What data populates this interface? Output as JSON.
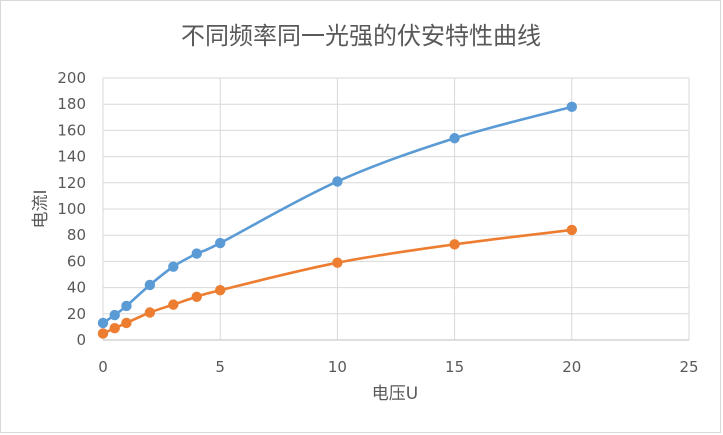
{
  "chart_data": {
    "type": "scatter",
    "title": "不同频率同一光强的伏安特性曲线",
    "xlabel": "电压U",
    "ylabel": "电流I",
    "xlim": [
      0,
      25
    ],
    "ylim": [
      0,
      200
    ],
    "xticks": [
      0,
      5,
      10,
      15,
      20,
      25
    ],
    "yticks": [
      0,
      20,
      40,
      60,
      80,
      100,
      120,
      140,
      160,
      180,
      200
    ],
    "grid": true,
    "legend": "none",
    "colors": [
      "#5B9BD5",
      "#ED7D31"
    ],
    "series": [
      {
        "x": [
          0,
          0.5,
          1,
          2,
          3,
          4,
          5,
          10,
          15,
          20
        ],
        "y": [
          13,
          19,
          26,
          42,
          56,
          66,
          74,
          121,
          154,
          178
        ]
      },
      {
        "x": [
          0,
          0.5,
          1,
          2,
          3,
          4,
          5,
          10,
          15,
          20
        ],
        "y": [
          5,
          9,
          13,
          21,
          27,
          33,
          38,
          59,
          73,
          84
        ]
      }
    ]
  }
}
